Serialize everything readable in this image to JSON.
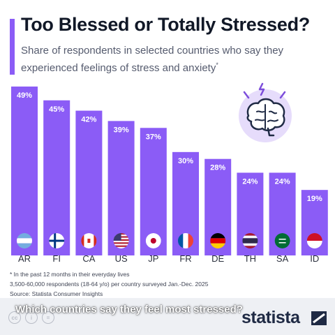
{
  "header": {
    "title": "Too Blessed or Totally Stressed?",
    "subtitle": "Share of respondents in selected countries who say they experienced feelings of stress and anxiety",
    "subtitle_marker": "*"
  },
  "chart_data": {
    "type": "bar",
    "categories": [
      "AR",
      "FI",
      "CA",
      "US",
      "JP",
      "FR",
      "DE",
      "TH",
      "SA",
      "ID"
    ],
    "values": [
      49,
      45,
      42,
      39,
      37,
      30,
      28,
      24,
      24,
      19
    ],
    "value_labels": [
      "49%",
      "45%",
      "42%",
      "39%",
      "37%",
      "30%",
      "28%",
      "24%",
      "24%",
      "19%"
    ],
    "ylim": [
      0,
      50
    ],
    "grid": false,
    "colors": {
      "bar": "#8b5cf6",
      "label_text": "#ffffff"
    }
  },
  "footnotes": {
    "note": "* In the past 12 months in their everyday lives",
    "sample": "3,500-60,000 respondents (18-64 y/o) per country surveyed Jan.-Dec. 2025",
    "source": "Source: Statista Consumer Insights"
  },
  "caption": "Which countries say they feel most stressed?",
  "brand": {
    "logo": "statista"
  },
  "icons": [
    "brain-icon",
    "cc-icon",
    "info-icon",
    "equals-icon",
    "statista-logo-mark"
  ]
}
